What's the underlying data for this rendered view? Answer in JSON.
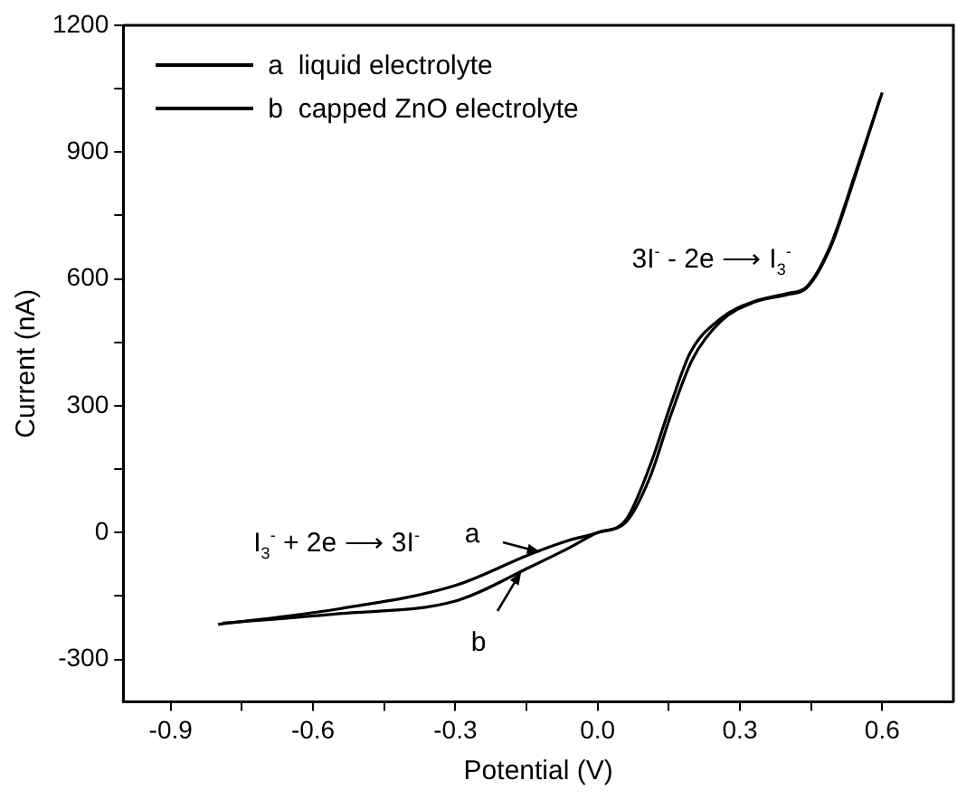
{
  "chart_data": {
    "type": "line",
    "xlabel": "Potential (V)",
    "ylabel": "Current (nA)",
    "xlim": [
      -1.0,
      0.75
    ],
    "ylim": [
      -400,
      1200
    ],
    "xticks": [
      -0.9,
      {
        "value": -0.75,
        "label": null
      },
      -0.6,
      {
        "value": -0.45,
        "label": null
      },
      -0.3,
      {
        "value": -0.15,
        "label": null
      },
      {
        "value": 0,
        "label": "0.0"
      },
      {
        "value": 0.15,
        "label": null
      },
      0.3,
      {
        "value": 0.45,
        "label": null
      },
      0.6
    ],
    "yticks": [
      -300,
      {
        "value": -150,
        "label": null
      },
      0,
      {
        "value": 150,
        "label": null
      },
      300,
      {
        "value": 450,
        "label": null
      },
      600,
      {
        "value": 750,
        "label": null
      },
      900,
      {
        "value": 1050,
        "label": null
      },
      1200
    ],
    "grid": false,
    "legend": "top left",
    "line_style": "solid",
    "marker": "none",
    "series": [
      {
        "name": "a  liquid electrolyte",
        "color": "#000000",
        "x": [
          -0.8,
          -0.55,
          -0.3,
          -0.14,
          -0.06,
          0,
          0.06,
          0.11,
          0.155,
          0.195,
          0.26,
          0.33,
          0.4,
          0.44,
          0.49,
          0.545,
          0.6
        ],
        "values": [
          -217,
          -181,
          -125,
          -50,
          -18,
          0,
          31,
          157,
          306,
          425,
          507,
          547,
          566,
          581,
          677,
          856,
          1041
        ]
      },
      {
        "name": "b  capped ZnO electrolyte",
        "color": "#000000",
        "x": [
          -0.79,
          -0.55,
          -0.3,
          -0.14,
          -0.06,
          0,
          0.06,
          0.11,
          0.155,
          0.2,
          0.26,
          0.33,
          0.4,
          0.44,
          0.49,
          0.545,
          0.595
        ],
        "values": [
          -214,
          -192,
          -162,
          -80,
          -36,
          0,
          25,
          130,
          280,
          410,
          500,
          545,
          563,
          578,
          672,
          850,
          1025
        ]
      }
    ],
    "annotations": [
      "3I$^{-}$ - 2e ⟶ I$_{3}$$^{-}$",
      "I$_{3}$$^{-}$ + 2e ⟶ 3I$^{-}$",
      {
        "text": "a",
        "x": -0.12,
        "y": -45
      },
      {
        "text": "b",
        "x": -0.16,
        "y": -90
      }
    ]
  }
}
